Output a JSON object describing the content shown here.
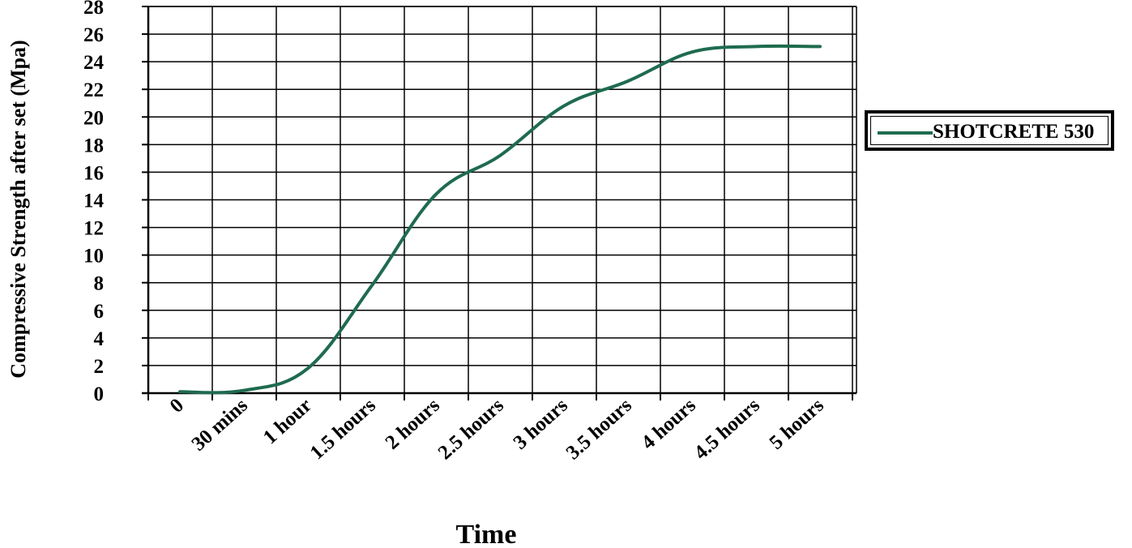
{
  "chart_data": {
    "type": "line",
    "title": "",
    "xlabel": "Time",
    "ylabel": "Compressive Strength after set (Mpa)",
    "categories": [
      "0",
      "30 mins",
      "1 hour",
      "1.5 hours",
      "2 hours",
      "2.5 hours",
      "3 hours",
      "3.5 hours",
      "4 hours",
      "4.5 hours",
      "5 hours"
    ],
    "yticks": [
      "0",
      "2",
      "4",
      "6",
      "8",
      "10",
      "12",
      "14",
      "16",
      "18",
      "20",
      "22",
      "24",
      "26",
      "28"
    ],
    "ylim": [
      0,
      28
    ],
    "grid": true,
    "legend_position": "right",
    "series": [
      {
        "name": "SHOTCRETE 530",
        "color": "#1f6b4f",
        "values": [
          0.1,
          0.2,
          1.8,
          7.8,
          14.4,
          17.2,
          20.8,
          22.6,
          24.7,
          25.1,
          25.1
        ]
      }
    ]
  }
}
